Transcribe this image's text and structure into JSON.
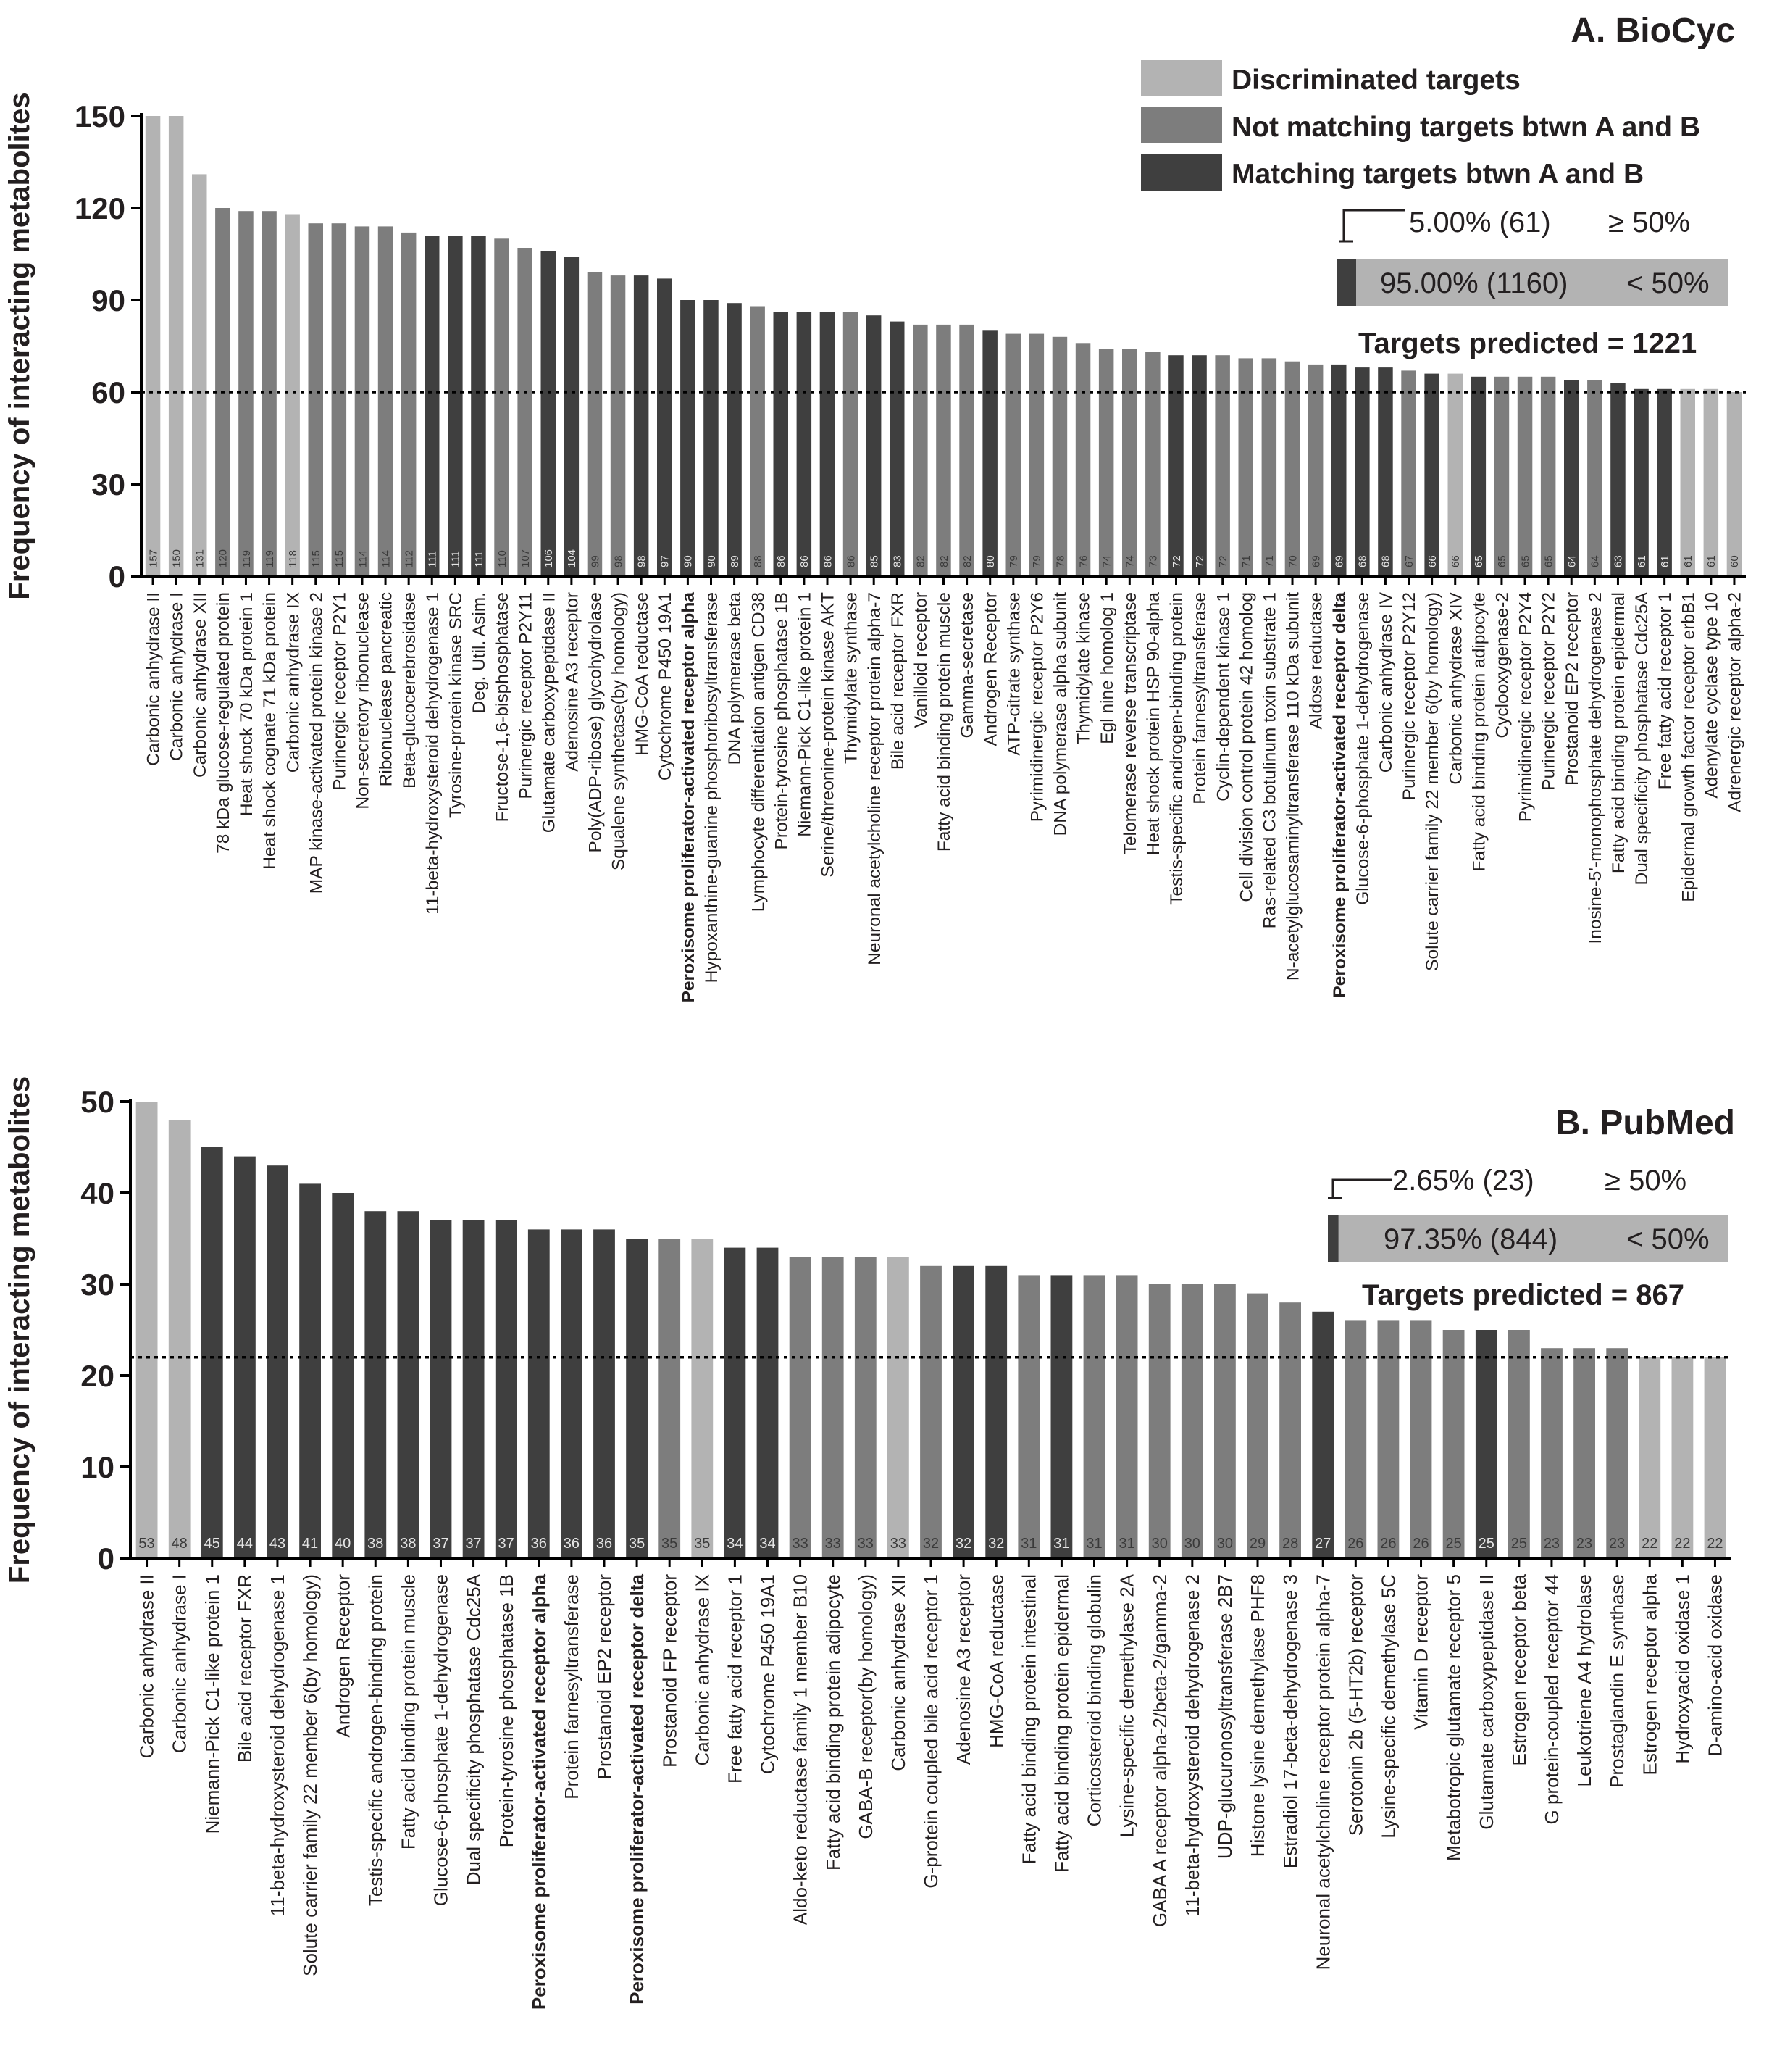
{
  "colors": {
    "discriminated": "#b3b3b3",
    "not_matching": "#7d7d7d",
    "matching": "#3f3f3f",
    "text": "#231f20",
    "count_on_light": "#3a3a3a",
    "count_on_dark": "#e6e6e6"
  },
  "legend": {
    "discriminated": "Discriminated targets",
    "not_matching": "Not matching targets btwn A and B",
    "matching": "Matching targets btwn A and B"
  },
  "chart_data": [
    {
      "type": "bar",
      "title": "A. BioCyc",
      "ylabel": "Frequency of interacting metabolites",
      "ylim": [
        0,
        150
      ],
      "yticks": [
        0,
        30,
        60,
        90,
        120,
        150
      ],
      "threshold": 60,
      "categories": [
        "Carbonic anhydrase II",
        "Carbonic anhydrase I",
        "Carbonic anhydrase XII",
        "78 kDa glucose-regulated protein",
        "Heat shock 70 kDa protein 1",
        "Heat shock cognate 71 kDa protein",
        "Carbonic anhydrase IX",
        "MAP kinase-activated protein kinase 2",
        "Purinergic receptor P2Y1",
        "Non-secretory ribonuclease",
        "Ribonuclease pancreatic",
        "Beta-glucocerebrosidase",
        "11-beta-hydroxysteroid dehydrogenase 1",
        "Tyrosine-protein kinase SRC",
        "Deg. Util. Asim.",
        "Fructose-1,6-bisphosphatase",
        "Purinergic receptor P2Y11",
        "Glutamate carboxypeptidase II",
        "Adenosine A3 receptor",
        "Poly(ADP-ribose) glycohydrolase",
        "Squalene synthetase(by homology)",
        "HMG-CoA reductase",
        "Cytochrome P450 19A1",
        "Peroxisome proliferator-activated receptor alpha",
        "Hypoxanthine-guanine phosphoribosyltransferase",
        "DNA polymerase beta",
        "Lymphocyte differentiation antigen CD38",
        "Protein-tyrosine phosphatase 1B",
        "Niemann-Pick C1-like protein 1",
        "Serine/threonine-protein kinase AKT",
        "Thymidylate synthase",
        "Neuronal acetylcholine receptor protein alpha-7",
        "Bile acid receptor FXR",
        "Vanilloid receptor",
        "Fatty acid binding protein muscle",
        "Gamma-secretase",
        "Androgen Receptor",
        "ATP-citrate synthase",
        "Pyrimidinergic receptor P2Y6",
        "DNA polymerase alpha subunit",
        "Thymidylate kinase",
        "Egl nine homolog 1",
        "Telomerase reverse transcriptase",
        "Heat shock protein HSP 90-alpha",
        "Testis-specific androgen-binding protein",
        "Protein farnesyltransferase",
        "Cyclin-dependent kinase 1",
        "Cell division control protein 42 homolog",
        "Ras-related C3 botulinum toxin substrate 1",
        "N-acetylglucosaminyltransferase 110 kDa subunit",
        "Aldose reductase",
        "Peroxisome proliferator-activated receptor delta",
        "Glucose-6-phosphate 1-dehydrogenase",
        "Carbonic anhydrase IV",
        "Purinergic receptor P2Y12",
        "Solute carrier family 22 member 6(by homology)",
        "Carbonic anhydrase XIV",
        "Fatty acid binding protein adipocyte",
        "Cyclooxygenase-2",
        "Pyrimidinergic receptor P2Y4",
        "Purinergic receptor P2Y2",
        "Prostanoid EP2 receptor",
        "Inosine-5'-monophosphate dehydrogenase 2",
        "Fatty acid binding protein epidermal",
        "Dual specificity phosphatase Cdc25A",
        "Free fatty acid receptor 1",
        "Epidermal growth factor receptor erbB1",
        "Adenylate cyclase type 10",
        "Adrenergic receptor alpha-2"
      ],
      "values": [
        157,
        150,
        131,
        120,
        119,
        119,
        118,
        115,
        115,
        114,
        114,
        112,
        111,
        111,
        111,
        110,
        107,
        106,
        104,
        99,
        98,
        98,
        97,
        90,
        90,
        89,
        88,
        86,
        86,
        86,
        86,
        85,
        83,
        82,
        82,
        82,
        80,
        79,
        79,
        78,
        76,
        74,
        74,
        73,
        72,
        72,
        72,
        71,
        71,
        70,
        69,
        69,
        68,
        68,
        67,
        66,
        66,
        65,
        65,
        65,
        65,
        64,
        64,
        63,
        61,
        61,
        61,
        61,
        60
      ],
      "groups": [
        "D",
        "D",
        "D",
        "N",
        "N",
        "N",
        "D",
        "N",
        "N",
        "N",
        "N",
        "N",
        "M",
        "M",
        "M",
        "N",
        "N",
        "M",
        "M",
        "N",
        "N",
        "M",
        "M",
        "M",
        "M",
        "M",
        "N",
        "M",
        "M",
        "M",
        "N",
        "M",
        "M",
        "N",
        "N",
        "N",
        "M",
        "N",
        "N",
        "N",
        "N",
        "N",
        "N",
        "N",
        "M",
        "M",
        "N",
        "N",
        "N",
        "N",
        "N",
        "M",
        "M",
        "M",
        "N",
        "M",
        "D",
        "M",
        "N",
        "N",
        "N",
        "M",
        "N",
        "M",
        "M",
        "M",
        "D",
        "D",
        "D"
      ],
      "bold_labels": [
        "Peroxisome proliferator-activated receptor alpha",
        "Peroxisome proliferator-activated receptor delta"
      ],
      "inset": {
        "high_label": "5.00% (61)",
        "high_condition": "≥ 50%",
        "low_label": "95.00% (1160)",
        "low_condition": "< 50%",
        "high_fraction": 0.05,
        "total_text": "Targets predicted = 1221"
      }
    },
    {
      "type": "bar",
      "title": "B. PubMed",
      "ylabel": "Frequency of interacting metabolites",
      "ylim": [
        0,
        50
      ],
      "yticks": [
        0,
        10,
        20,
        30,
        40,
        50
      ],
      "threshold": 22,
      "categories": [
        "Carbonic anhydrase II",
        "Carbonic anhydrase I",
        "Niemann-Pick C1-like protein 1",
        "Bile acid receptor FXR",
        "11-beta-hydroxysteroid dehydrogenase 1",
        "Solute carrier family 22 member 6(by homology)",
        "Androgen Receptor",
        "Testis-specific androgen-binding protein",
        "Fatty acid binding protein muscle",
        "Glucose-6-phosphate 1-dehydrogenase",
        "Dual specificity phosphatase Cdc25A",
        "Protein-tyrosine phosphatase 1B",
        "Peroxisome proliferator-activated receptor alpha",
        "Protein farnesyltransferase",
        "Prostanoid EP2 receptor",
        "Peroxisome proliferator-activated receptor delta",
        "Prostanoid FP receptor",
        "Carbonic anhydrase IX",
        "Free fatty acid receptor 1",
        "Cytochrome P450 19A1",
        "Aldo-keto reductase family 1 member B10",
        "Fatty acid binding protein adipocyte",
        "GABA-B receptor(by homology)",
        "Carbonic anhydrase XII",
        "G-protein coupled bile acid receptor 1",
        "Adenosine A3 receptor",
        "HMG-CoA reductase",
        "Fatty acid binding protein intestinal",
        "Fatty acid binding protein epidermal",
        "Corticosteroid binding globulin",
        "Lysine-specific demethylase 2A",
        "GABA A receptor alpha-2/beta-2/gamma-2",
        "11-beta-hydroxysteroid dehydrogenase 2",
        "UDP-glucuronosyltransferase 2B7",
        "Histone lysine demethylase PHF8",
        "Estradiol 17-beta-dehydrogenase 3",
        "Neuronal acetylcholine receptor protein alpha-7",
        "Serotonin 2b (5-HT2b) receptor",
        "Lysine-specific demethylase 5C",
        "Vitamin D receptor",
        "Metabotropic glutamate receptor 5",
        "Glutamate carboxypeptidase II",
        "Estrogen receptor beta",
        "G protein-coupled receptor 44",
        "Leukotriene A4 hydrolase",
        "Prostaglandin E synthase",
        "Estrogen receptor alpha",
        "Hydroxyacid oxidase 1",
        "D-amino-acid oxidase"
      ],
      "values": [
        53,
        48,
        45,
        44,
        43,
        41,
        40,
        38,
        38,
        37,
        37,
        37,
        36,
        36,
        36,
        35,
        35,
        35,
        34,
        34,
        33,
        33,
        33,
        33,
        32,
        32,
        32,
        31,
        31,
        31,
        31,
        30,
        30,
        30,
        29,
        28,
        27,
        26,
        26,
        26,
        25,
        25,
        25,
        23,
        23,
        23,
        22,
        22,
        22
      ],
      "groups": [
        "D",
        "D",
        "M",
        "M",
        "M",
        "M",
        "M",
        "M",
        "M",
        "M",
        "M",
        "M",
        "M",
        "M",
        "M",
        "M",
        "N",
        "D",
        "M",
        "M",
        "N",
        "N",
        "N",
        "D",
        "N",
        "M",
        "M",
        "N",
        "M",
        "N",
        "N",
        "N",
        "N",
        "N",
        "N",
        "N",
        "M",
        "N",
        "N",
        "N",
        "N",
        "M",
        "N",
        "N",
        "N",
        "N",
        "D",
        "D",
        "D"
      ],
      "bold_labels": [
        "Peroxisome proliferator-activated receptor alpha",
        "Peroxisome proliferator-activated receptor delta"
      ],
      "inset": {
        "high_label": "2.65% (23)",
        "high_condition": "≥ 50%",
        "low_label": "97.35% (844)",
        "low_condition": "< 50%",
        "high_fraction": 0.0265,
        "total_text": "Targets predicted = 867"
      }
    }
  ]
}
